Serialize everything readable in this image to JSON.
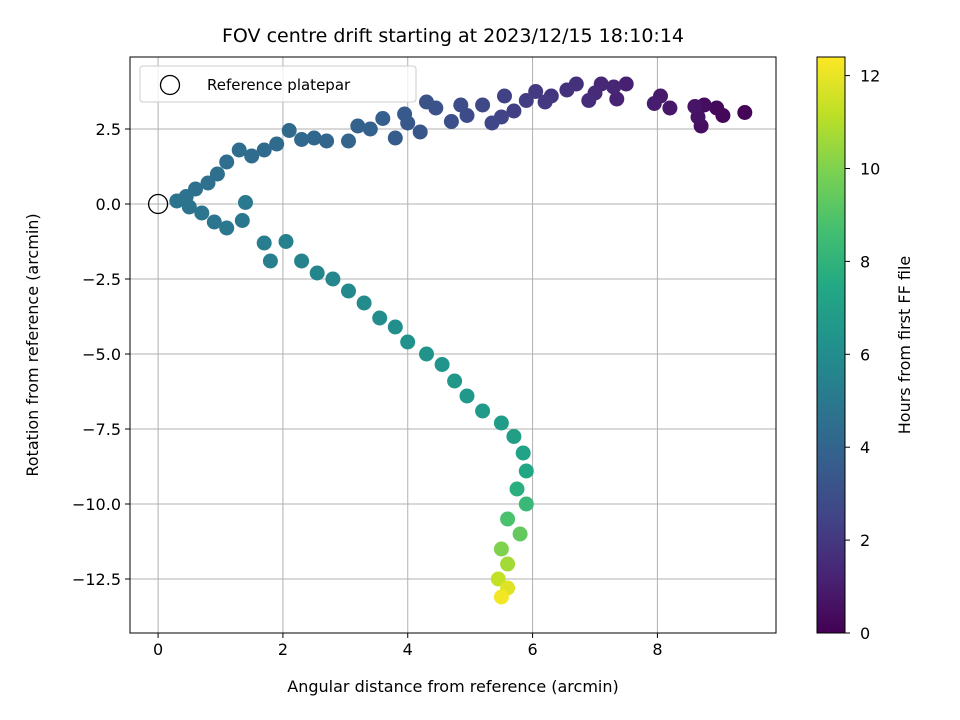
{
  "chart_data": {
    "type": "scatter",
    "title": "FOV centre drift starting at 2023/12/15 18:10:14",
    "xlabel": "Angular distance from reference (arcmin)",
    "ylabel": "Rotation from reference (arcmin)",
    "xlim": [
      -0.45,
      9.9
    ],
    "ylim": [
      -14.3,
      4.9
    ],
    "xticks": [
      "0",
      "2",
      "4",
      "6",
      "8"
    ],
    "xtick_values": [
      0,
      2,
      4,
      6,
      8
    ],
    "yticks": [
      "2.5",
      "0.0",
      "−2.5",
      "−5.0",
      "−7.5",
      "−10.0",
      "−12.5"
    ],
    "ytick_values": [
      2.5,
      0.0,
      -2.5,
      -5.0,
      -7.5,
      -10.0,
      -12.5
    ],
    "grid": true,
    "legend": {
      "position": "top-left",
      "entries": [
        "Reference platepar"
      ]
    },
    "reference_point": {
      "x": 0.0,
      "y": 0.0
    },
    "colorbar": {
      "label": "Hours from first FF file",
      "colormap": "viridis",
      "range": [
        0,
        12.4
      ],
      "ticks": [
        "0",
        "2",
        "4",
        "6",
        "8",
        "10",
        "12"
      ],
      "tick_values": [
        0,
        2,
        4,
        6,
        8,
        10,
        12
      ]
    },
    "series": [
      {
        "color_by": "hours",
        "columns": [
          "x",
          "y",
          "hours"
        ],
        "points": [
          [
            9.4,
            3.05,
            0.1
          ],
          [
            9.05,
            2.95,
            0.2
          ],
          [
            8.95,
            3.2,
            0.3
          ],
          [
            8.75,
            3.3,
            0.4
          ],
          [
            8.7,
            2.6,
            0.5
          ],
          [
            8.65,
            2.9,
            0.6
          ],
          [
            8.6,
            3.25,
            0.7
          ],
          [
            8.2,
            3.2,
            0.8
          ],
          [
            8.05,
            3.6,
            0.9
          ],
          [
            7.95,
            3.35,
            1.0
          ],
          [
            7.5,
            4.0,
            1.1
          ],
          [
            7.35,
            3.5,
            1.2
          ],
          [
            7.3,
            3.9,
            1.3
          ],
          [
            7.1,
            4.0,
            1.4
          ],
          [
            7.0,
            3.7,
            1.5
          ],
          [
            6.9,
            3.45,
            1.6
          ],
          [
            6.7,
            4.0,
            1.7
          ],
          [
            6.55,
            3.8,
            1.8
          ],
          [
            6.3,
            3.6,
            1.9
          ],
          [
            6.2,
            3.4,
            2.0
          ],
          [
            6.05,
            3.75,
            2.1
          ],
          [
            5.9,
            3.45,
            2.2
          ],
          [
            5.7,
            3.1,
            2.3
          ],
          [
            5.55,
            3.6,
            2.4
          ],
          [
            5.5,
            2.9,
            2.5
          ],
          [
            5.35,
            2.7,
            2.6
          ],
          [
            5.2,
            3.3,
            2.7
          ],
          [
            4.95,
            2.95,
            2.8
          ],
          [
            4.85,
            3.3,
            2.9
          ],
          [
            4.7,
            2.75,
            3.0
          ],
          [
            4.45,
            3.2,
            3.1
          ],
          [
            4.3,
            3.4,
            3.2
          ],
          [
            4.2,
            2.4,
            3.3
          ],
          [
            4.0,
            2.7,
            3.4
          ],
          [
            3.95,
            3.0,
            3.5
          ],
          [
            3.8,
            2.2,
            3.6
          ],
          [
            3.6,
            2.85,
            3.7
          ],
          [
            3.4,
            2.5,
            3.8
          ],
          [
            3.2,
            2.6,
            3.9
          ],
          [
            3.05,
            2.1,
            4.0
          ],
          [
            2.7,
            2.1,
            4.05
          ],
          [
            2.5,
            2.2,
            4.1
          ],
          [
            2.3,
            2.15,
            4.15
          ],
          [
            2.1,
            2.45,
            4.2
          ],
          [
            1.9,
            2.0,
            4.25
          ],
          [
            1.7,
            1.8,
            4.3
          ],
          [
            1.5,
            1.6,
            4.35
          ],
          [
            1.3,
            1.8,
            4.4
          ],
          [
            1.1,
            1.4,
            4.45
          ],
          [
            0.95,
            1.0,
            4.5
          ],
          [
            0.8,
            0.7,
            4.55
          ],
          [
            0.6,
            0.5,
            4.6
          ],
          [
            0.45,
            0.25,
            4.65
          ],
          [
            0.3,
            0.1,
            4.7
          ],
          [
            0.5,
            -0.1,
            4.75
          ],
          [
            0.7,
            -0.3,
            4.8
          ],
          [
            0.9,
            -0.6,
            4.85
          ],
          [
            1.1,
            -0.8,
            4.9
          ],
          [
            1.35,
            -0.55,
            4.95
          ],
          [
            1.4,
            0.05,
            5.0
          ],
          [
            1.7,
            -1.3,
            5.2
          ],
          [
            1.8,
            -1.9,
            5.3
          ],
          [
            2.05,
            -1.25,
            5.4
          ],
          [
            2.3,
            -1.9,
            5.5
          ],
          [
            2.55,
            -2.3,
            5.6
          ],
          [
            2.8,
            -2.5,
            5.7
          ],
          [
            3.05,
            -2.9,
            5.8
          ],
          [
            3.3,
            -3.3,
            5.9
          ],
          [
            3.55,
            -3.8,
            6.0
          ],
          [
            3.8,
            -4.1,
            6.1
          ],
          [
            4.0,
            -4.6,
            6.2
          ],
          [
            4.3,
            -5.0,
            6.3
          ],
          [
            4.55,
            -5.35,
            6.4
          ],
          [
            4.75,
            -5.9,
            6.5
          ],
          [
            4.95,
            -6.4,
            6.6
          ],
          [
            5.2,
            -6.9,
            6.7
          ],
          [
            5.5,
            -7.3,
            6.8
          ],
          [
            5.7,
            -7.75,
            6.9
          ],
          [
            5.85,
            -8.3,
            7.1
          ],
          [
            5.9,
            -8.9,
            7.4
          ],
          [
            5.75,
            -9.5,
            7.8
          ],
          [
            5.9,
            -10.0,
            8.3
          ],
          [
            5.6,
            -10.5,
            8.8
          ],
          [
            5.8,
            -11.0,
            9.4
          ],
          [
            5.5,
            -11.5,
            10.0
          ],
          [
            5.6,
            -12.0,
            10.7
          ],
          [
            5.45,
            -12.5,
            11.3
          ],
          [
            5.6,
            -12.8,
            11.8
          ],
          [
            5.5,
            -13.1,
            12.2
          ]
        ]
      }
    ]
  }
}
